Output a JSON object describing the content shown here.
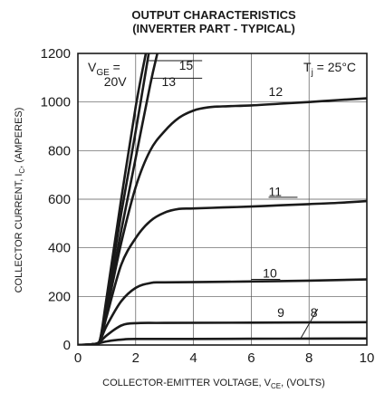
{
  "chart_data": {
    "type": "line",
    "title_line1": "OUTPUT CHARACTERISTICS",
    "title_line2": "(INVERTER PART - TYPICAL)",
    "xlabel": {
      "main": "COLLECTOR-EMITTER VOLTAGE, V",
      "sub": "CE",
      "tail": ", (VOLTS)"
    },
    "ylabel": {
      "main": "COLLECTOR CURRENT, I",
      "sub": "C",
      "tail": ", (AMPERES)"
    },
    "xlim": [
      0,
      10
    ],
    "ylim": [
      0,
      1200
    ],
    "xticks": [
      0,
      2,
      4,
      6,
      8,
      10
    ],
    "yticks": [
      0,
      200,
      400,
      600,
      800,
      1000,
      1200
    ],
    "grid": true,
    "annotations": {
      "vge_prefix": "V",
      "vge_sub": "GE",
      "vge_suffix": " =",
      "tj_prefix": "T",
      "tj_sub": "j",
      "tj_suffix": " = 25°C"
    },
    "series": [
      {
        "name": "20V",
        "points": [
          [
            0,
            0
          ],
          [
            0.5,
            3
          ],
          [
            0.75,
            15
          ],
          [
            1.0,
            200
          ],
          [
            1.5,
            600
          ],
          [
            2.0,
            980
          ],
          [
            2.35,
            1200
          ]
        ]
      },
      {
        "name": "15",
        "points": [
          [
            0,
            0
          ],
          [
            0.5,
            3
          ],
          [
            0.75,
            15
          ],
          [
            1.0,
            180
          ],
          [
            1.5,
            540
          ],
          [
            2.0,
            880
          ],
          [
            2.45,
            1200
          ]
        ]
      },
      {
        "name": "13",
        "points": [
          [
            0,
            0
          ],
          [
            0.5,
            3
          ],
          [
            0.75,
            15
          ],
          [
            1.0,
            160
          ],
          [
            1.5,
            470
          ],
          [
            2.0,
            770
          ],
          [
            2.5,
            1070
          ],
          [
            2.75,
            1200
          ]
        ]
      },
      {
        "name": "12",
        "points": [
          [
            0,
            0
          ],
          [
            0.5,
            3
          ],
          [
            0.75,
            15
          ],
          [
            1.0,
            140
          ],
          [
            1.5,
            420
          ],
          [
            2.0,
            650
          ],
          [
            2.5,
            800
          ],
          [
            3.0,
            880
          ],
          [
            3.5,
            935
          ],
          [
            4.0,
            965
          ],
          [
            4.5,
            978
          ],
          [
            5.0,
            982
          ],
          [
            6.0,
            986
          ],
          [
            7.0,
            993
          ],
          [
            8.0,
            1000
          ],
          [
            9.0,
            1008
          ],
          [
            10.0,
            1015
          ]
        ]
      },
      {
        "name": "11",
        "points": [
          [
            0,
            0
          ],
          [
            0.5,
            3
          ],
          [
            0.75,
            15
          ],
          [
            1.0,
            120
          ],
          [
            1.5,
            330
          ],
          [
            2.0,
            440
          ],
          [
            2.5,
            510
          ],
          [
            3.0,
            545
          ],
          [
            3.5,
            560
          ],
          [
            4.0,
            562
          ],
          [
            5.0,
            566
          ],
          [
            6.0,
            570
          ],
          [
            7.0,
            575
          ],
          [
            8.0,
            580
          ],
          [
            9.0,
            585
          ],
          [
            10.0,
            592
          ]
        ]
      },
      {
        "name": "10",
        "points": [
          [
            0,
            0
          ],
          [
            0.5,
            3
          ],
          [
            0.75,
            15
          ],
          [
            1.0,
            80
          ],
          [
            1.5,
            180
          ],
          [
            2.0,
            235
          ],
          [
            2.5,
            255
          ],
          [
            3.0,
            258
          ],
          [
            5.0,
            260
          ],
          [
            7.0,
            263
          ],
          [
            8.0,
            265
          ],
          [
            10.0,
            270
          ]
        ]
      },
      {
        "name": "9",
        "points": [
          [
            0,
            0
          ],
          [
            0.5,
            3
          ],
          [
            0.75,
            12
          ],
          [
            1.0,
            40
          ],
          [
            1.5,
            80
          ],
          [
            2.0,
            90
          ],
          [
            3.0,
            91
          ],
          [
            6.0,
            92
          ],
          [
            10.0,
            94
          ]
        ]
      },
      {
        "name": "8",
        "points": [
          [
            0,
            0
          ],
          [
            0.5,
            3
          ],
          [
            0.75,
            8
          ],
          [
            1.0,
            15
          ],
          [
            1.5,
            22
          ],
          [
            2.0,
            25
          ],
          [
            4.0,
            25
          ],
          [
            7.0,
            26
          ],
          [
            10.0,
            27
          ]
        ]
      }
    ]
  }
}
